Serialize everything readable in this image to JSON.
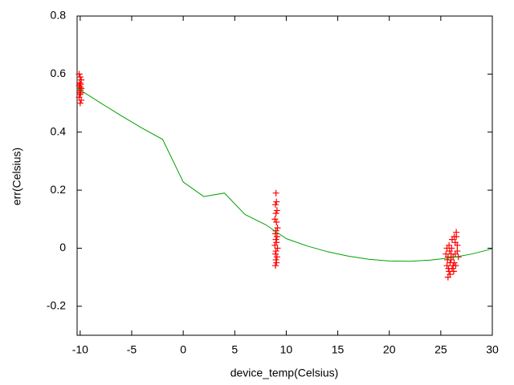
{
  "chart_data": {
    "type": "scatter",
    "x_label": "device_temp(Celsius)",
    "y_label": "err(Celsius)",
    "xlim": [
      -10.3,
      30
    ],
    "ylim": [
      -0.3,
      0.8
    ],
    "xticks": [
      -10,
      -5,
      0,
      5,
      10,
      15,
      20,
      25,
      30
    ],
    "yticks": [
      -0.2,
      0,
      0.2,
      0.4,
      0.6,
      0.8
    ],
    "series": [
      {
        "type": "scatter",
        "color": "#ff0000",
        "x": [
          -10.1,
          -10,
          -9.9,
          -10.05,
          -9.95,
          -10.1,
          -10,
          -9.9,
          -10,
          -10.05,
          -9.95,
          -10,
          -10.1,
          -9.9,
          -10,
          9,
          9.05,
          8.95,
          9.1,
          9,
          8.9,
          9.05,
          9.15,
          9,
          8.95,
          9.1,
          9,
          9.05,
          8.9,
          9.15,
          9,
          8.95,
          9.1,
          9,
          9.05,
          8.95,
          25.5,
          25.6,
          25.7,
          25.8,
          25.9,
          26,
          26.1,
          26.2,
          26.3,
          26.4,
          26.5,
          26.6,
          26.7,
          25.6,
          25.7,
          25.8,
          25.9,
          26,
          26.1,
          26.2,
          26.3,
          26.4,
          26.5,
          26.6,
          25.65,
          25.75,
          25.85,
          26.05,
          26.25,
          26.45
        ],
        "values": [
          0.6,
          0.59,
          0.58,
          0.57,
          0.565,
          0.56,
          0.555,
          0.55,
          0.545,
          0.54,
          0.535,
          0.53,
          0.52,
          0.51,
          0.5,
          0.19,
          0.16,
          0.15,
          0.13,
          0.12,
          0.1,
          0.09,
          0.07,
          0.06,
          0.05,
          0.04,
          0.03,
          0.02,
          0.01,
          0,
          -0.01,
          -0.02,
          -0.03,
          -0.04,
          -0.05,
          -0.06,
          -0.02,
          -0.06,
          -0.1,
          -0.08,
          -0.05,
          -0.04,
          -0.07,
          -0.03,
          -0.05,
          0.02,
          0.055,
          0.01,
          -0.03,
          0,
          -0.03,
          0.01,
          -0.09,
          -0.02,
          0.03,
          -0.06,
          0.04,
          -0.02,
          0.04,
          -0.01,
          -0.04,
          -0.07,
          -0.01,
          0,
          -0.08,
          -0.06
        ]
      },
      {
        "type": "line",
        "color": "#00a000",
        "x": [
          -10.3,
          -8,
          -6,
          -4,
          -2,
          0,
          2,
          4,
          6,
          8,
          10,
          12,
          14,
          16,
          18,
          20,
          22,
          24,
          26,
          28,
          30
        ],
        "values": [
          0.552,
          0.5,
          0.456,
          0.414,
          0.375,
          0.228,
          0.178,
          0.19,
          0.116,
          0.081,
          0.033,
          0.008,
          -0.012,
          -0.027,
          -0.038,
          -0.044,
          -0.045,
          -0.041,
          -0.033,
          -0.02,
          -0.002
        ]
      }
    ]
  }
}
